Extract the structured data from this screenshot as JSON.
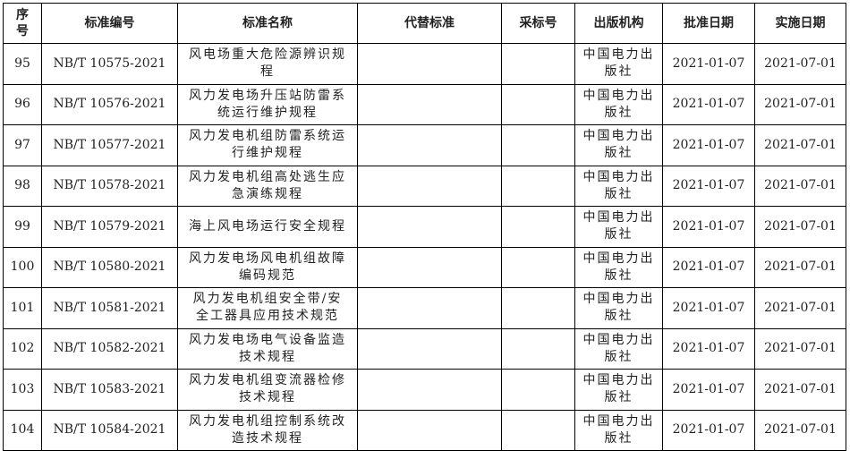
{
  "headers": [
    "序号",
    "标准编号",
    "标准名称",
    "代替标准",
    "采标号",
    "出版机构",
    "批准日期",
    "实施日期"
  ],
  "rows": [
    {
      "no": "95",
      "code": "NB/T 10575-2021",
      "name": "风电场重大危险源辨识规程",
      "replace": "",
      "adopt": "",
      "publisher": "中国电力出版社",
      "approve": "2021-01-07",
      "effective": "2021-07-01"
    },
    {
      "no": "96",
      "code": "NB/T 10576-2021",
      "name": "风力发电场升压站防雷系统运行维护规程",
      "replace": "",
      "adopt": "",
      "publisher": "中国电力出版社",
      "approve": "2021-01-07",
      "effective": "2021-07-01"
    },
    {
      "no": "97",
      "code": "NB/T 10577-2021",
      "name": "风力发电机组防雷系统运行维护规程",
      "replace": "",
      "adopt": "",
      "publisher": "中国电力出版社",
      "approve": "2021-01-07",
      "effective": "2021-07-01"
    },
    {
      "no": "98",
      "code": "NB/T 10578-2021",
      "name": "风力发电机组高处逃生应急演练规程",
      "replace": "",
      "adopt": "",
      "publisher": "中国电力出版社",
      "approve": "2021-01-07",
      "effective": "2021-07-01"
    },
    {
      "no": "99",
      "code": "NB/T 10579-2021",
      "name": "海上风电场运行安全规程",
      "replace": "",
      "adopt": "",
      "publisher": "中国电力出版社",
      "approve": "2021-01-07",
      "effective": "2021-07-01"
    },
    {
      "no": "100",
      "code": "NB/T 10580-2021",
      "name": "风力发电场风电机组故障编码规范",
      "replace": "",
      "adopt": "",
      "publisher": "中国电力出版社",
      "approve": "2021-01-07",
      "effective": "2021-07-01"
    },
    {
      "no": "101",
      "code": "NB/T 10581-2021",
      "name": "风力发电机组安全带/安全工器具应用技术规范",
      "replace": "",
      "adopt": "",
      "publisher": "中国电力出版社",
      "approve": "2021-01-07",
      "effective": "2021-07-01"
    },
    {
      "no": "102",
      "code": "NB/T 10582-2021",
      "name": "风力发电场电气设备监造技术规程",
      "replace": "",
      "adopt": "",
      "publisher": "中国电力出版社",
      "approve": "2021-01-07",
      "effective": "2021-07-01"
    },
    {
      "no": "103",
      "code": "NB/T 10583-2021",
      "name": "风力发电机组变流器检修技术规程",
      "replace": "",
      "adopt": "",
      "publisher": "中国电力出版社",
      "approve": "2021-01-07",
      "effective": "2021-07-01"
    },
    {
      "no": "104",
      "code": "NB/T 10584-2021",
      "name": "风力发电机组控制系统改造技术规程",
      "replace": "",
      "adopt": "",
      "publisher": "中国电力出版社",
      "approve": "2021-01-07",
      "effective": "2021-07-01"
    }
  ]
}
